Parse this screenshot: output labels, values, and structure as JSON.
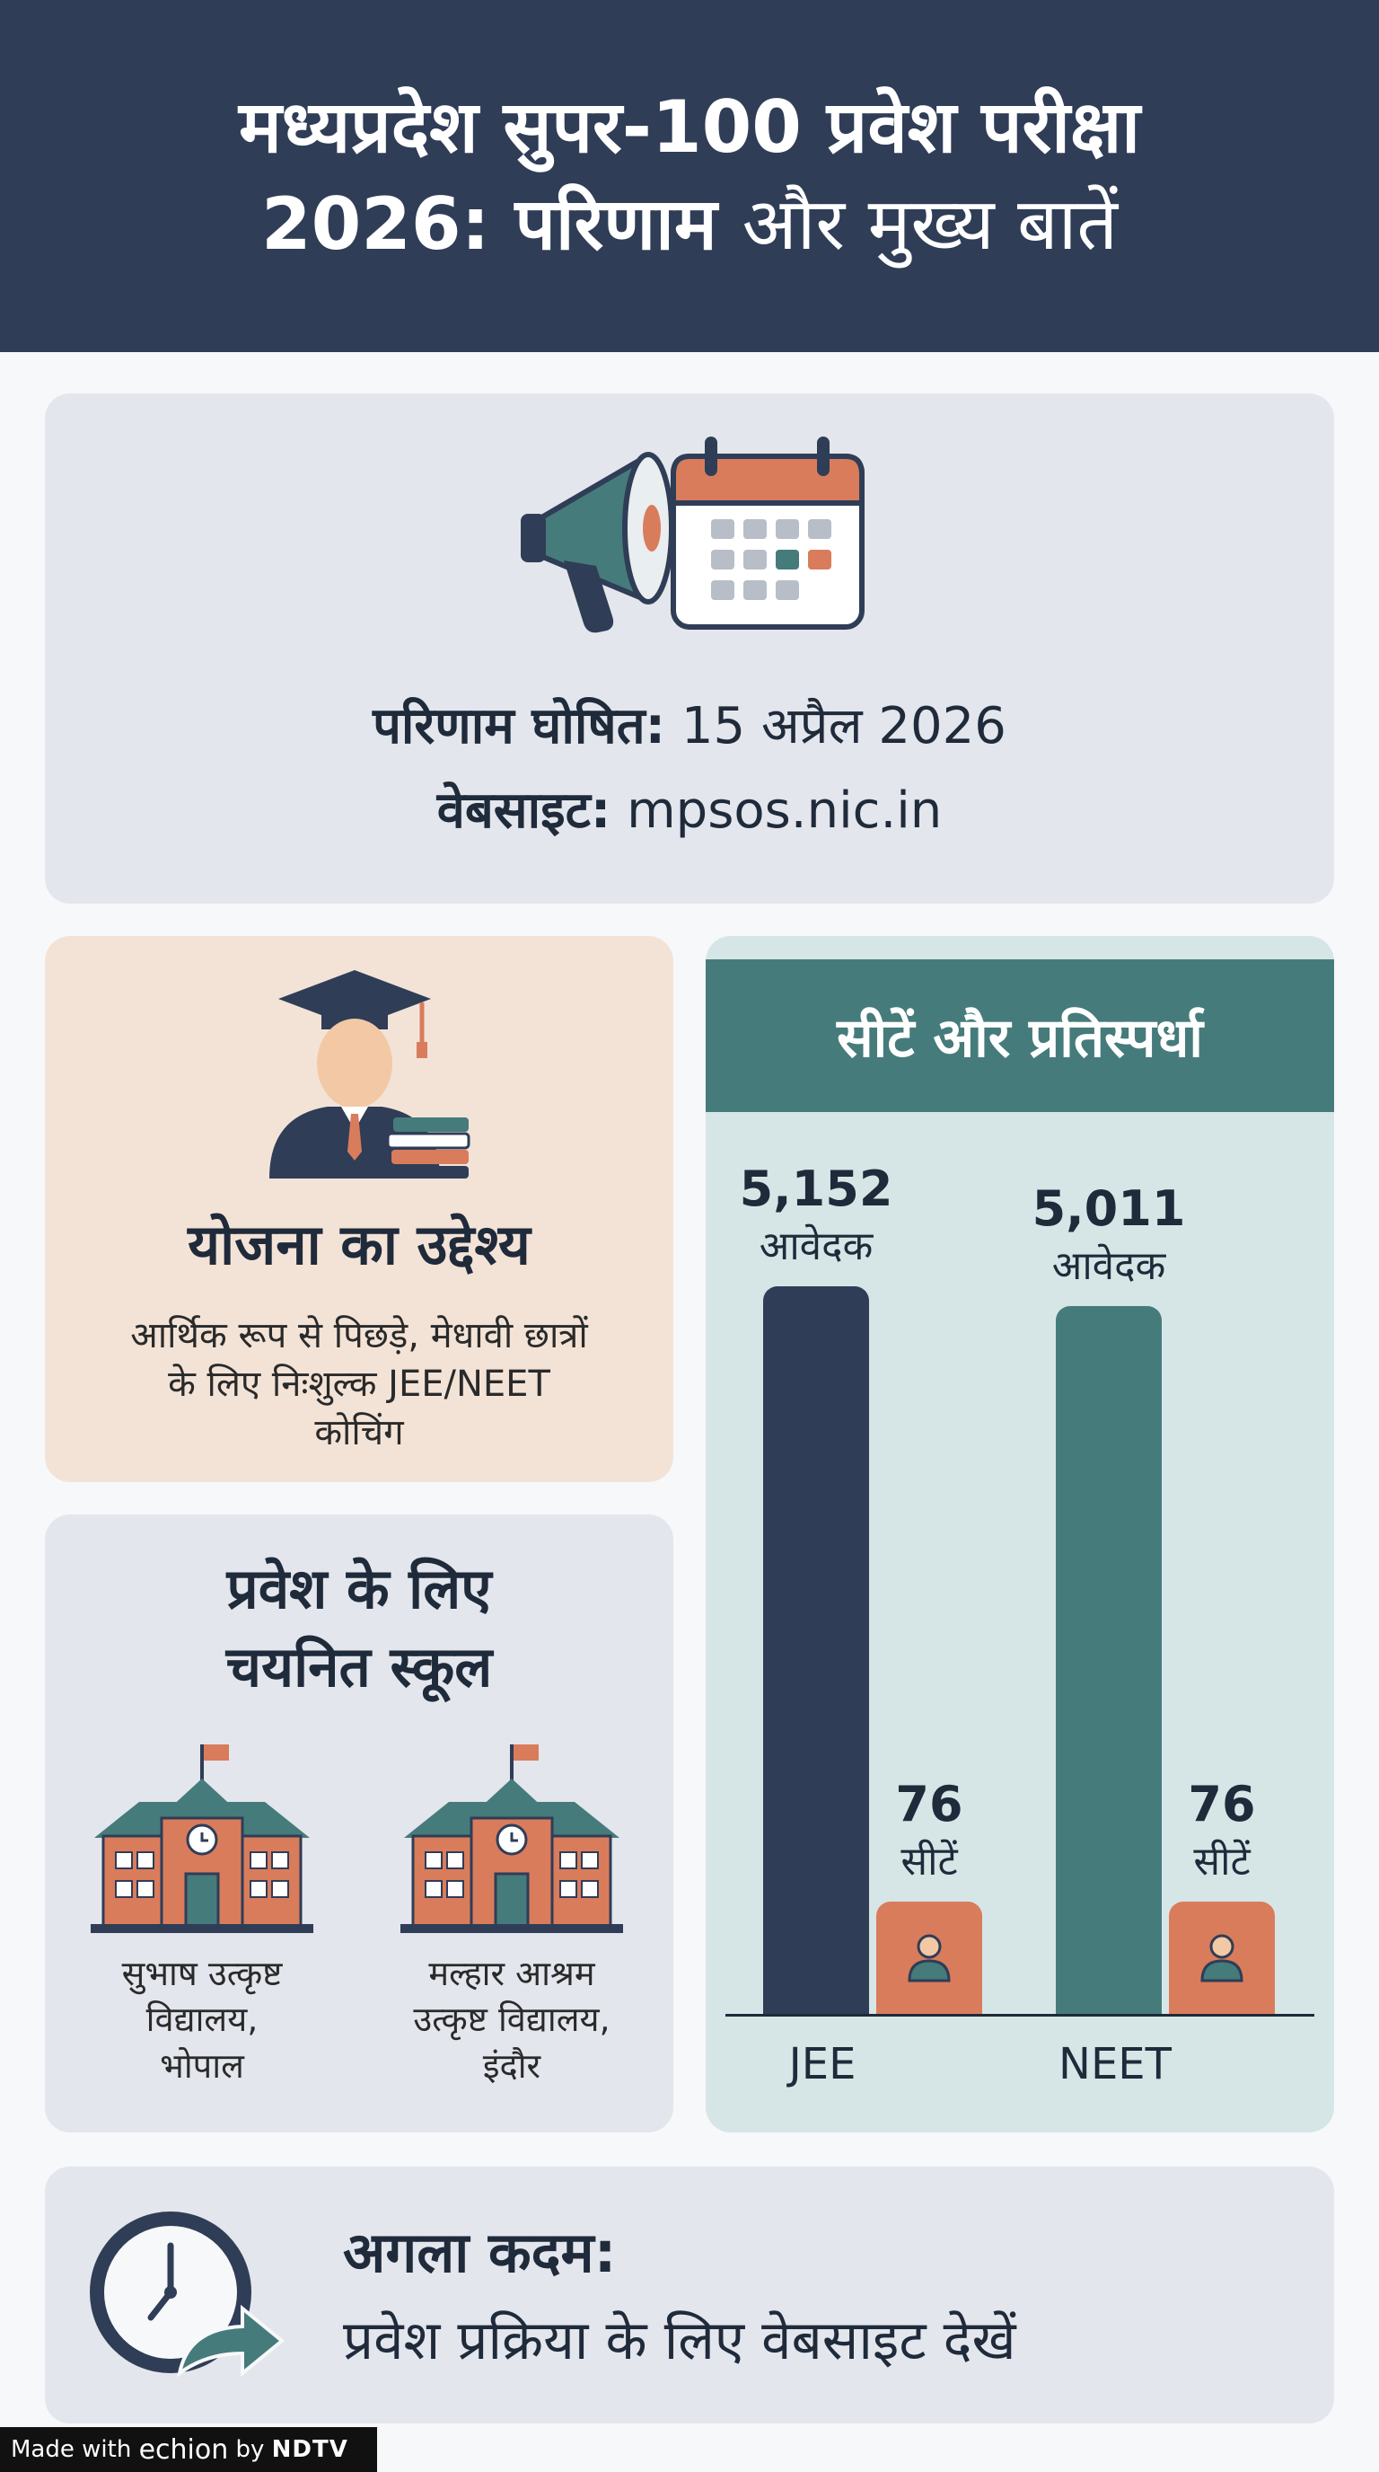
{
  "header": {
    "title_line1": "मध्यप्रदेश सुपर-100 प्रवेश परीक्षा",
    "title_line2_bold": "2026: परिणाम",
    "title_line2_rest": "और मुख्य बातें"
  },
  "results": {
    "declared_label": "परिणाम घोषित:",
    "declared_value": "15 अप्रैल 2026",
    "website_label": "वेबसाइट:",
    "website_value": "mpsos.nic.in",
    "icons": [
      "megaphone-icon",
      "calendar-icon"
    ]
  },
  "objective": {
    "title": "योजना का उद्देश्य",
    "desc_line1": "आर्थिक रूप से पिछड़े, मेधावी छात्रों",
    "desc_line2": "के लिए निःशुल्क JEE/NEET",
    "desc_line3": "कोचिंग"
  },
  "schools": {
    "title_line1": "प्रवेश के लिए",
    "title_line2": "चयनित स्कूल",
    "items": [
      {
        "line1": "सुभाष उत्कृष्ट",
        "line2": "विद्यालय,",
        "line3": "भोपाल"
      },
      {
        "line1": "मल्हार आश्रम",
        "line2": "उत्कृष्ट विद्यालय,",
        "line3": "इंदौर"
      }
    ]
  },
  "chart_data": {
    "type": "bar",
    "title": "सीटें और प्रतिस्पर्धा",
    "categories": [
      "JEE",
      "NEET"
    ],
    "applicant_label": "आवेदक",
    "seat_label": "सीटें",
    "series": [
      {
        "values": [
          5152,
          5011
        ],
        "display": [
          "5,152",
          "5,011"
        ],
        "color": "#2f3d57"
      },
      {
        "values": [
          76,
          76
        ],
        "display": [
          "76",
          "76"
        ],
        "color": "#d97c5c"
      }
    ]
  },
  "next_step": {
    "label": "अगला कदम:",
    "text": "प्रवेश प्रक्रिया के लिए वेबसाइट देखें"
  },
  "footer": {
    "made_with": "Made with",
    "brand": "echion",
    "by": "by",
    "partner": "NDTV"
  },
  "colors": {
    "navy": "#2f3d57",
    "teal": "#467b7b",
    "orange": "#d97c5c",
    "light_gray": "#e3e6ec",
    "peach": "#f3e3d7",
    "mint": "#d6e6e6"
  }
}
